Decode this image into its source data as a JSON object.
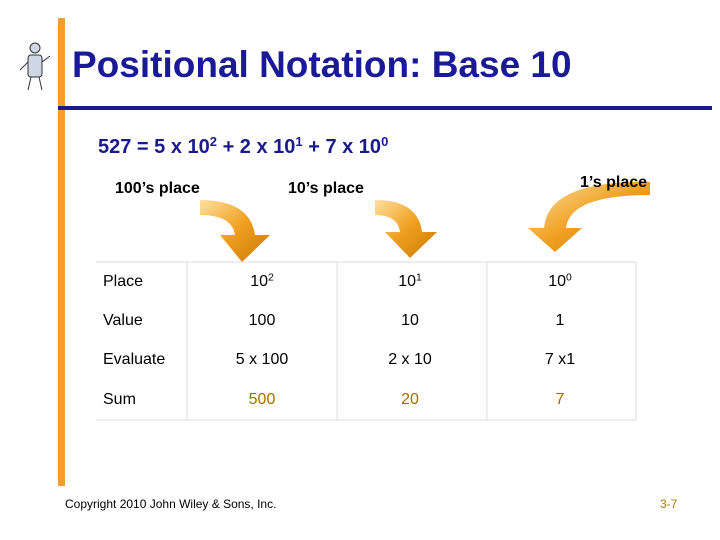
{
  "title": "Positional Notation: Base 10",
  "equation": [
    {
      "text": "527 = 5 x 10",
      "sup": "2"
    },
    {
      "text": " + 2 x 10",
      "sup": "1"
    },
    {
      "text": " + 7 x 10",
      "sup": "0"
    }
  ],
  "place_labels": [
    "100’s place",
    "10’s place",
    "1’s place"
  ],
  "table": {
    "rows": [
      [
        {
          "text": "Place"
        },
        {
          "text": "10",
          "sup": "2"
        },
        {
          "text": "10",
          "sup": "1"
        },
        {
          "text": "10",
          "sup": "0"
        }
      ],
      [
        {
          "text": "Value"
        },
        {
          "text": "100"
        },
        {
          "text": "10"
        },
        {
          "text": "1"
        }
      ],
      [
        {
          "text": "Evaluate"
        },
        {
          "text": "5 x 100"
        },
        {
          "text": "2 x 10"
        },
        {
          "text": "7 x1"
        }
      ],
      [
        {
          "text": "Sum"
        },
        {
          "text": "500"
        },
        {
          "text": "20"
        },
        {
          "text": "7"
        }
      ]
    ]
  },
  "footer": {
    "copyright": "Copyright 2010 John Wiley & Sons, Inc.",
    "page": "3-7"
  }
}
